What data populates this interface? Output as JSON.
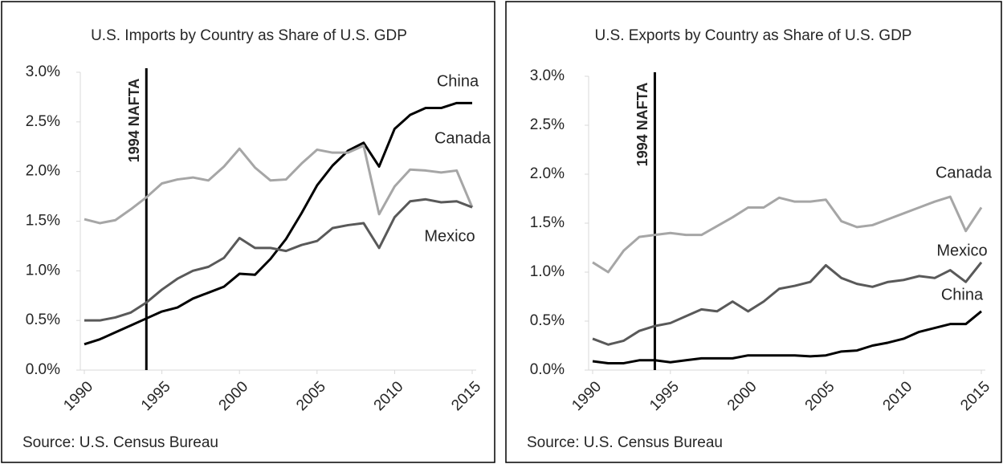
{
  "chart_data": [
    {
      "type": "line",
      "title": "U.S. Imports by Country as Share of U.S. GDP",
      "source": "Source: U.S. Census Bureau",
      "x": [
        1990,
        1991,
        1992,
        1993,
        1994,
        1995,
        1996,
        1997,
        1998,
        1999,
        2000,
        2001,
        2002,
        2003,
        2004,
        2005,
        2006,
        2007,
        2008,
        2009,
        2010,
        2011,
        2012,
        2013,
        2014,
        2015
      ],
      "series": [
        {
          "name": "China",
          "color": "#000000",
          "values": [
            0.26,
            0.31,
            0.38,
            0.45,
            0.52,
            0.59,
            0.63,
            0.72,
            0.78,
            0.84,
            0.97,
            0.96,
            1.12,
            1.32,
            1.58,
            1.86,
            2.06,
            2.21,
            2.29,
            2.05,
            2.43,
            2.57,
            2.64,
            2.64,
            2.69,
            2.69
          ]
        },
        {
          "name": "Canada",
          "color": "#a6a6a6",
          "values": [
            1.52,
            1.48,
            1.51,
            1.62,
            1.74,
            1.88,
            1.92,
            1.94,
            1.91,
            2.05,
            2.23,
            2.04,
            1.91,
            1.92,
            2.08,
            2.22,
            2.19,
            2.19,
            2.26,
            1.57,
            1.85,
            2.02,
            2.01,
            1.99,
            2.01,
            1.64
          ]
        },
        {
          "name": "Mexico",
          "color": "#595959",
          "values": [
            0.5,
            0.5,
            0.53,
            0.58,
            0.68,
            0.81,
            0.92,
            1.0,
            1.04,
            1.13,
            1.33,
            1.23,
            1.23,
            1.2,
            1.26,
            1.3,
            1.43,
            1.46,
            1.48,
            1.23,
            1.54,
            1.7,
            1.72,
            1.69,
            1.7,
            1.64
          ]
        }
      ],
      "xlim": [
        1990,
        2015
      ],
      "xticks": [
        1990,
        1995,
        2000,
        2005,
        2010,
        2015
      ],
      "ylim": [
        0,
        3
      ],
      "yticks": [
        {
          "value": 0,
          "label": "0.0%"
        },
        {
          "value": 0.5,
          "label": "0.5%"
        },
        {
          "value": 1,
          "label": "1.0%"
        },
        {
          "value": 1.5,
          "label": "1.5%"
        },
        {
          "value": 2,
          "label": "2.0%"
        },
        {
          "value": 2.5,
          "label": "2.5%"
        },
        {
          "value": 3,
          "label": "3.0%"
        }
      ],
      "annotation": {
        "text": "1994 NAFTA",
        "x": 1994
      }
    },
    {
      "type": "line",
      "title": "U.S. Exports by Country as Share of U.S. GDP",
      "source": "Source: U.S. Census Bureau",
      "x": [
        1990,
        1991,
        1992,
        1993,
        1994,
        1995,
        1996,
        1997,
        1998,
        1999,
        2000,
        2001,
        2002,
        2003,
        2004,
        2005,
        2006,
        2007,
        2008,
        2009,
        2010,
        2011,
        2012,
        2013,
        2014,
        2015
      ],
      "series": [
        {
          "name": "Canada",
          "color": "#a6a6a6",
          "values": [
            1.1,
            1.0,
            1.22,
            1.36,
            1.38,
            1.4,
            1.38,
            1.38,
            1.47,
            1.56,
            1.66,
            1.66,
            1.76,
            1.72,
            1.72,
            1.74,
            1.52,
            1.46,
            1.48,
            1.54,
            1.6,
            1.66,
            1.72,
            1.77,
            1.42,
            1.66
          ]
        },
        {
          "name": "Mexico",
          "color": "#595959",
          "values": [
            0.32,
            0.26,
            0.3,
            0.4,
            0.45,
            0.48,
            0.55,
            0.62,
            0.6,
            0.7,
            0.6,
            0.7,
            0.83,
            0.86,
            0.9,
            1.07,
            0.94,
            0.88,
            0.85,
            0.9,
            0.92,
            0.96,
            0.94,
            1.02,
            0.9,
            1.1
          ]
        },
        {
          "name": "China",
          "color": "#000000",
          "values": [
            0.09,
            0.07,
            0.07,
            0.1,
            0.1,
            0.08,
            0.1,
            0.12,
            0.12,
            0.12,
            0.15,
            0.15,
            0.15,
            0.15,
            0.14,
            0.15,
            0.19,
            0.2,
            0.25,
            0.28,
            0.32,
            0.39,
            0.43,
            0.47,
            0.47,
            0.6
          ]
        }
      ],
      "xlim": [
        1990,
        2015
      ],
      "xticks": [
        1990,
        1995,
        2000,
        2005,
        2010,
        2015
      ],
      "ylim": [
        0,
        3
      ],
      "yticks": [
        {
          "value": 0,
          "label": "0.0%"
        },
        {
          "value": 0.5,
          "label": "0.5%"
        },
        {
          "value": 1,
          "label": "1.0%"
        },
        {
          "value": 1.5,
          "label": "1.5%"
        },
        {
          "value": 2,
          "label": "2.0%"
        },
        {
          "value": 2.5,
          "label": "2.5%"
        },
        {
          "value": 3,
          "label": "3.0%"
        }
      ],
      "annotation": {
        "text": "1994 NAFTA",
        "x": 1994
      }
    }
  ]
}
